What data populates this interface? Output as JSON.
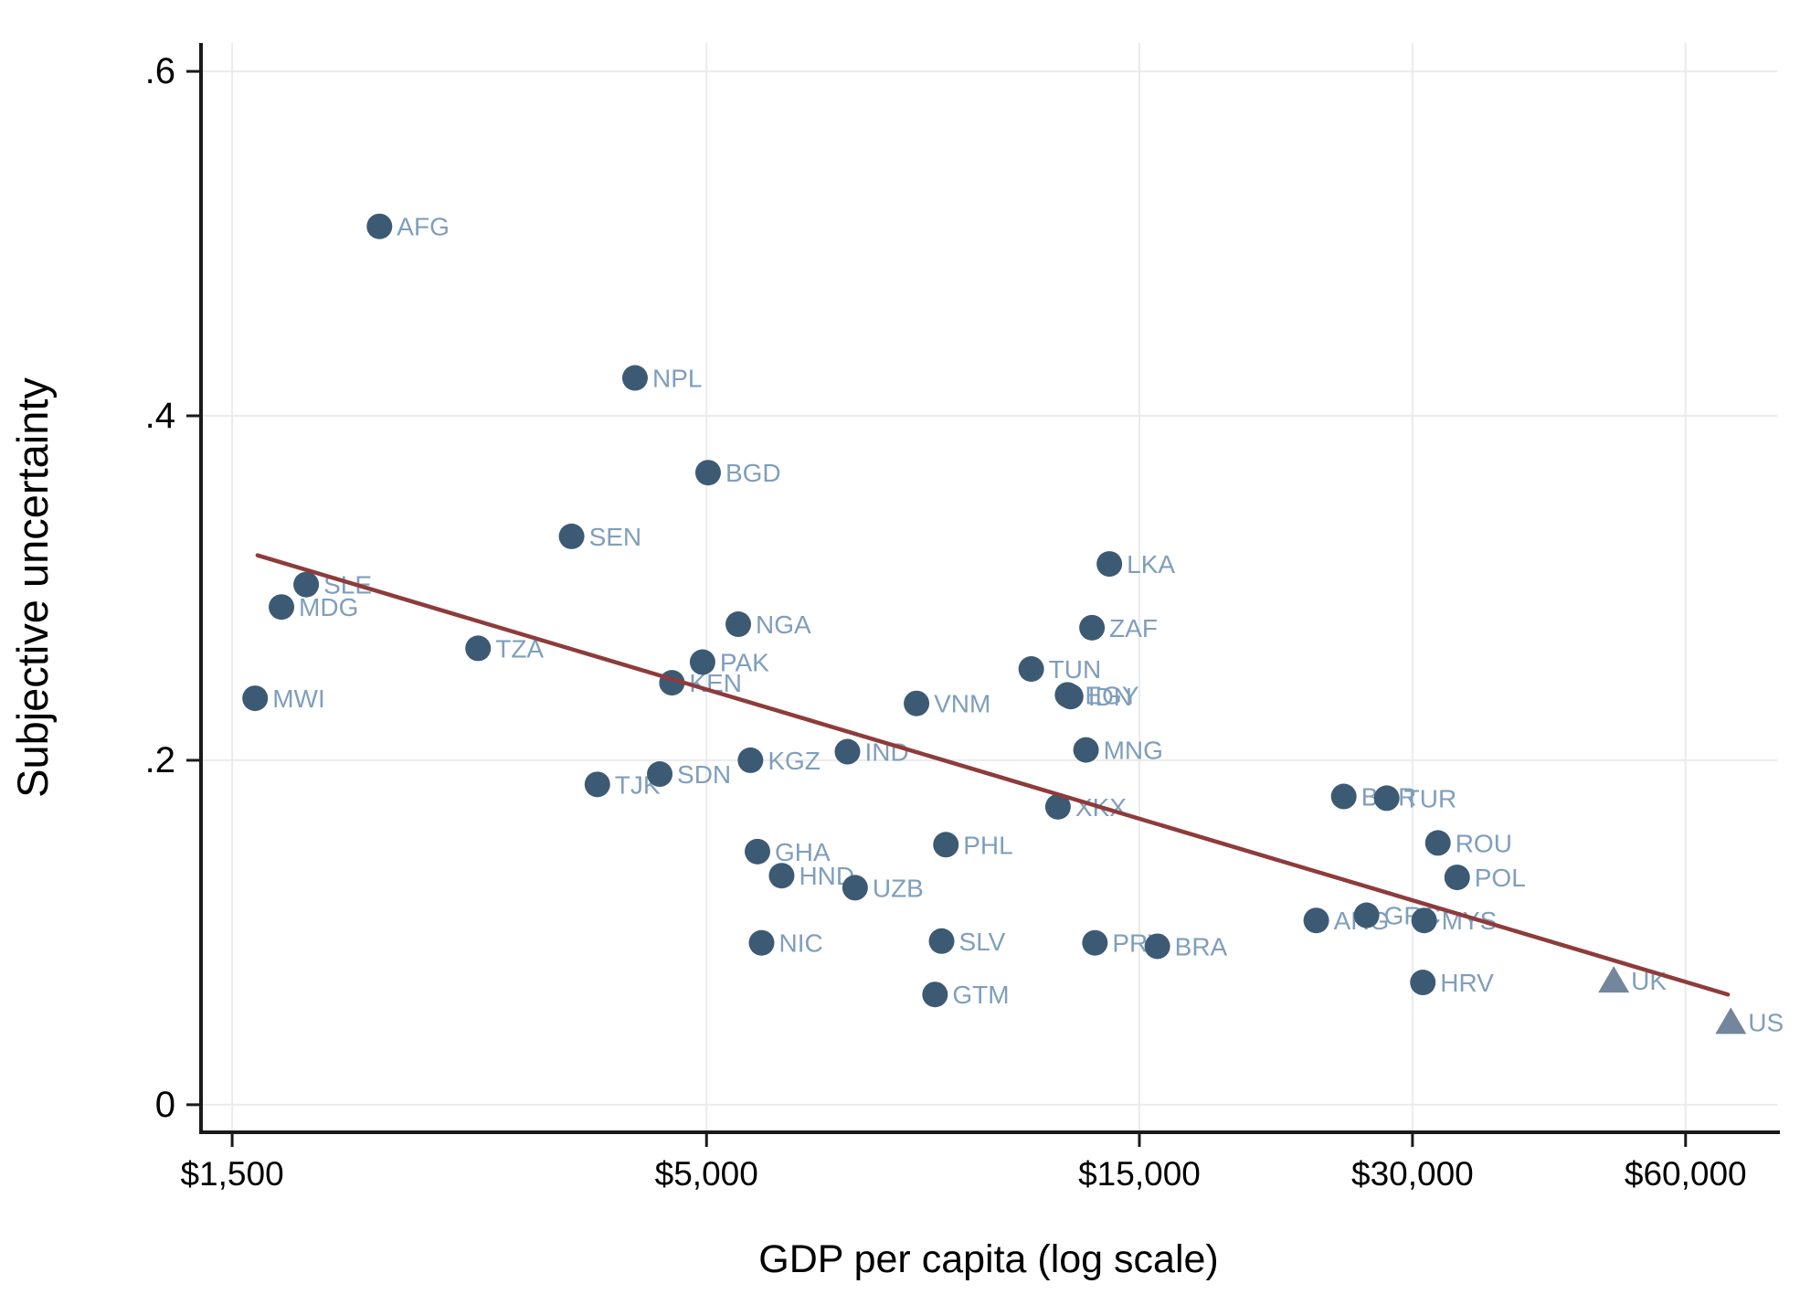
{
  "chart_data": {
    "type": "scatter",
    "title": "",
    "xlabel": "GDP per capita (log scale)",
    "ylabel": "Subjective uncertainty",
    "x_scale": "log",
    "xlim": [
      1386,
      75700
    ],
    "ylim": [
      -0.016,
      0.6165
    ],
    "grid": true,
    "legend_position": "none",
    "x_ticks": [
      {
        "value": 1500,
        "label": "$1,500"
      },
      {
        "value": 5000,
        "label": "$5,000"
      },
      {
        "value": 15000,
        "label": "$15,000"
      },
      {
        "value": 30000,
        "label": "$30,000"
      },
      {
        "value": 60000,
        "label": "$60,000"
      }
    ],
    "y_ticks": [
      {
        "value": 0,
        "label": "0"
      },
      {
        "value": 0.2,
        "label": ".2"
      },
      {
        "value": 0.4,
        "label": ".4"
      },
      {
        "value": 0.6,
        "label": ".6"
      }
    ],
    "points": [
      {
        "code": "MWI",
        "gdp": 1590,
        "uncertainty": 0.236,
        "marker": "circle"
      },
      {
        "code": "MDG",
        "gdp": 1700,
        "uncertainty": 0.289,
        "marker": "circle"
      },
      {
        "code": "SLE",
        "gdp": 1810,
        "uncertainty": 0.302,
        "marker": "circle"
      },
      {
        "code": "AFG",
        "gdp": 2180,
        "uncertainty": 0.51,
        "marker": "circle"
      },
      {
        "code": "TZA",
        "gdp": 2800,
        "uncertainty": 0.265,
        "marker": "circle"
      },
      {
        "code": "SEN",
        "gdp": 3550,
        "uncertainty": 0.33,
        "marker": "circle"
      },
      {
        "code": "TJK",
        "gdp": 3790,
        "uncertainty": 0.186,
        "marker": "circle"
      },
      {
        "code": "NPL",
        "gdp": 4170,
        "uncertainty": 0.422,
        "marker": "circle"
      },
      {
        "code": "SDN",
        "gdp": 4440,
        "uncertainty": 0.192,
        "marker": "circle"
      },
      {
        "code": "KEN",
        "gdp": 4580,
        "uncertainty": 0.245,
        "marker": "circle"
      },
      {
        "code": "PAK",
        "gdp": 4950,
        "uncertainty": 0.257,
        "marker": "circle"
      },
      {
        "code": "BGD",
        "gdp": 5020,
        "uncertainty": 0.367,
        "marker": "circle"
      },
      {
        "code": "NGA",
        "gdp": 5420,
        "uncertainty": 0.279,
        "marker": "circle"
      },
      {
        "code": "KGZ",
        "gdp": 5590,
        "uncertainty": 0.2,
        "marker": "circle"
      },
      {
        "code": "GHA",
        "gdp": 5690,
        "uncertainty": 0.147,
        "marker": "circle"
      },
      {
        "code": "NIC",
        "gdp": 5750,
        "uncertainty": 0.094,
        "marker": "circle"
      },
      {
        "code": "HND",
        "gdp": 6050,
        "uncertainty": 0.133,
        "marker": "circle"
      },
      {
        "code": "UZB",
        "gdp": 7290,
        "uncertainty": 0.126,
        "marker": "circle"
      },
      {
        "code": "IND",
        "gdp": 7150,
        "uncertainty": 0.205,
        "marker": "circle"
      },
      {
        "code": "VNM",
        "gdp": 8520,
        "uncertainty": 0.233,
        "marker": "circle"
      },
      {
        "code": "GTM",
        "gdp": 8930,
        "uncertainty": 0.064,
        "marker": "circle"
      },
      {
        "code": "SLV",
        "gdp": 9080,
        "uncertainty": 0.095,
        "marker": "circle"
      },
      {
        "code": "PHL",
        "gdp": 9180,
        "uncertainty": 0.151,
        "marker": "circle"
      },
      {
        "code": "TUN",
        "gdp": 11400,
        "uncertainty": 0.253,
        "marker": "circle"
      },
      {
        "code": "XKX",
        "gdp": 12200,
        "uncertainty": 0.173,
        "marker": "circle"
      },
      {
        "code": "EGY",
        "gdp": 12500,
        "uncertainty": 0.238,
        "marker": "circle"
      },
      {
        "code": "IDN",
        "gdp": 12600,
        "uncertainty": 0.237,
        "marker": "circle"
      },
      {
        "code": "MNG",
        "gdp": 13100,
        "uncertainty": 0.206,
        "marker": "circle"
      },
      {
        "code": "ZAF",
        "gdp": 13300,
        "uncertainty": 0.277,
        "marker": "circle"
      },
      {
        "code": "PRY",
        "gdp": 13400,
        "uncertainty": 0.094,
        "marker": "circle"
      },
      {
        "code": "LKA",
        "gdp": 13900,
        "uncertainty": 0.314,
        "marker": "circle"
      },
      {
        "code": "BRA",
        "gdp": 15700,
        "uncertainty": 0.092,
        "marker": "circle"
      },
      {
        "code": "ARG",
        "gdp": 23500,
        "uncertainty": 0.107,
        "marker": "circle"
      },
      {
        "code": "BGR",
        "gdp": 25200,
        "uncertainty": 0.179,
        "marker": "circle"
      },
      {
        "code": "GRC",
        "gdp": 26700,
        "uncertainty": 0.11,
        "marker": "circle"
      },
      {
        "code": "TUR",
        "gdp": 28100,
        "uncertainty": 0.178,
        "marker": "circle"
      },
      {
        "code": "HRV",
        "gdp": 30800,
        "uncertainty": 0.071,
        "marker": "circle"
      },
      {
        "code": "MYS",
        "gdp": 30900,
        "uncertainty": 0.107,
        "marker": "circle"
      },
      {
        "code": "ROU",
        "gdp": 32000,
        "uncertainty": 0.152,
        "marker": "circle"
      },
      {
        "code": "POL",
        "gdp": 33600,
        "uncertainty": 0.132,
        "marker": "circle"
      },
      {
        "code": "UK",
        "gdp": 50000,
        "uncertainty": 0.072,
        "marker": "triangle"
      },
      {
        "code": "US",
        "gdp": 67300,
        "uncertainty": 0.048,
        "marker": "triangle"
      }
    ],
    "trend_line": {
      "gdp_start": 1600,
      "y_start": 0.319,
      "gdp_end": 66800,
      "y_end": 0.064
    },
    "colors": {
      "point": "#3c5a74",
      "point_label": "#7f9ebc",
      "triangle": "#74869e",
      "trend": "#8e3b3b",
      "grid": "#e9ebed",
      "axis": "#1a1a1a",
      "tick_text": "#000000"
    }
  }
}
